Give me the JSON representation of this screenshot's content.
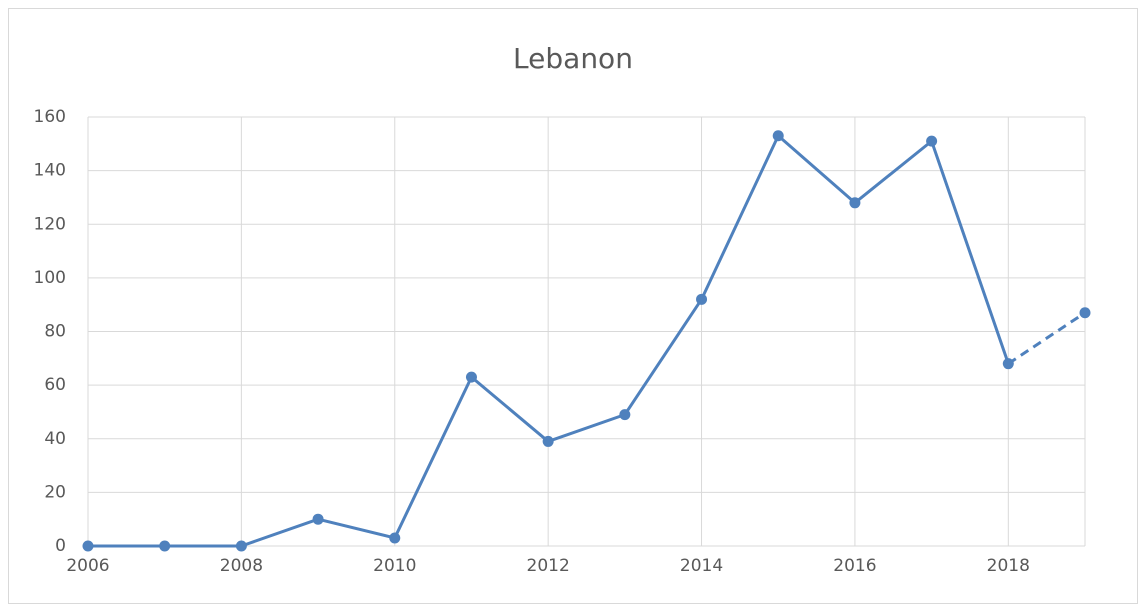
{
  "chart_data": {
    "type": "line",
    "title": "Lebanon",
    "x": [
      2006,
      2007,
      2008,
      2009,
      2010,
      2011,
      2012,
      2013,
      2014,
      2015,
      2016,
      2017,
      2018,
      2019
    ],
    "series": [
      {
        "name": "Lebanon",
        "color": "#4f81bd",
        "values": [
          0,
          0,
          0,
          10,
          3,
          63,
          39,
          49,
          92,
          153,
          128,
          151,
          68,
          87
        ]
      }
    ],
    "dashed_last_segment": true,
    "xlim": [
      2006,
      2019
    ],
    "xticks": [
      2006,
      2008,
      2010,
      2012,
      2014,
      2016,
      2018
    ],
    "ylim": [
      0,
      160
    ],
    "yticks": [
      0,
      20,
      40,
      60,
      80,
      100,
      120,
      140,
      160
    ],
    "grid": true
  }
}
